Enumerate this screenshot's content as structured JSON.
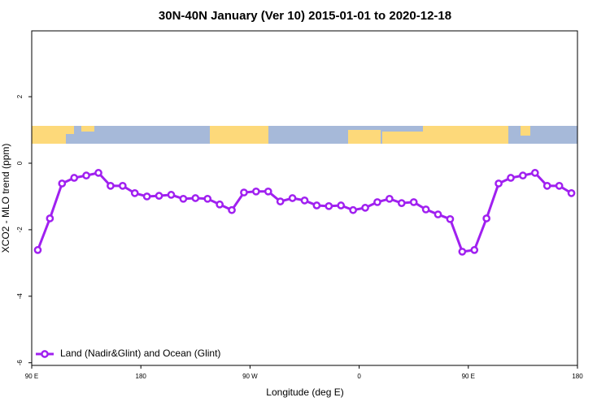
{
  "chart_data": {
    "type": "line",
    "title": "30N-40N January (Ver 10)   2015-01-01 to 2020-12-18",
    "x_label": "Longitude (deg E)",
    "y_label": "XCO2 - MLO trend (ppm)",
    "xlim": [
      90,
      540
    ],
    "xticks": [
      {
        "value": 90,
        "label": "90 E"
      },
      180,
      {
        "value": 270,
        "label": "90 W"
      },
      {
        "value": 360,
        "label": "0"
      },
      {
        "value": 450,
        "label": "90 E"
      },
      {
        "value": 540,
        "label": "180"
      }
    ],
    "ylim": [
      -6.08,
      3.98
    ],
    "yticks": [
      -6,
      -4,
      -2,
      0,
      2
    ],
    "legend": "bottom-left",
    "x": [
      95,
      105,
      115,
      125,
      135,
      145,
      155,
      165,
      175,
      185,
      195,
      205,
      215,
      225,
      235,
      245,
      255,
      265,
      275,
      285,
      295,
      305,
      315,
      325,
      335,
      345,
      355,
      365,
      375,
      385,
      395,
      405,
      415,
      425,
      435,
      445,
      455,
      465,
      475,
      485,
      495,
      505,
      515,
      525,
      535
    ],
    "series": [
      {
        "name": "Land (Nadir&Glint) and Ocean (Glint)",
        "color": "#a020f0",
        "values": [
          -2.61,
          -1.66,
          -0.61,
          -0.44,
          -0.37,
          -0.29,
          -0.68,
          -0.68,
          -0.9,
          -1.0,
          -0.98,
          -0.95,
          -1.07,
          -1.05,
          -1.07,
          -1.24,
          -1.41,
          -0.88,
          -0.85,
          -0.85,
          -1.15,
          -1.05,
          -1.12,
          -1.27,
          -1.29,
          -1.27,
          -1.41,
          -1.34,
          -1.17,
          -1.07,
          -1.2,
          -1.17,
          -1.39,
          -1.54,
          -1.68,
          -2.66,
          -2.61,
          -1.66,
          -0.61,
          -0.44,
          -0.37,
          -0.29,
          -0.68,
          -0.68,
          -0.9
        ]
      }
    ]
  }
}
